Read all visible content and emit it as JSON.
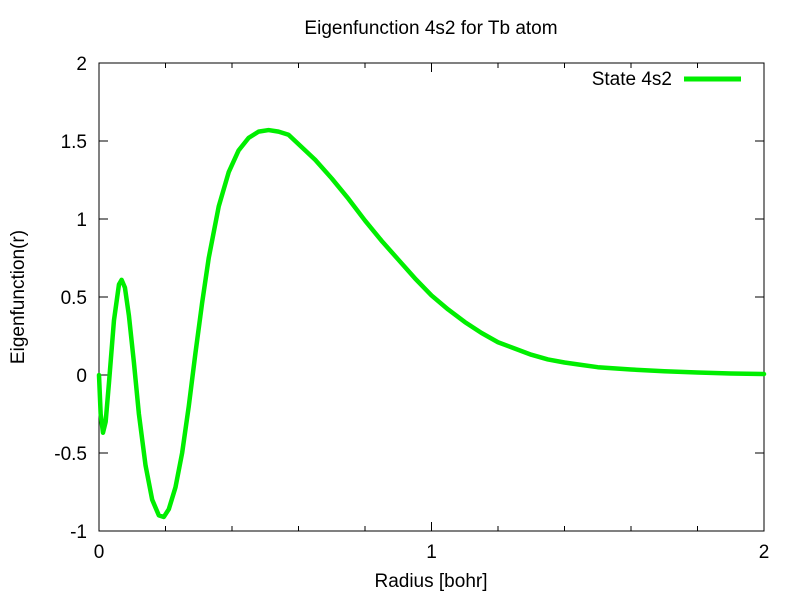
{
  "chart_data": {
    "type": "line",
    "title": "Eigenfunction 4s2 for Tb atom",
    "xlabel": "Radius [bohr]",
    "ylabel": "Eigenfunction(r)",
    "xlim": [
      0,
      2
    ],
    "ylim": [
      -1,
      2
    ],
    "xticks": [
      0,
      1,
      2
    ],
    "xtick_labels": [
      "0",
      "1",
      "2"
    ],
    "yticks": [
      -1,
      -0.5,
      0,
      0.5,
      1,
      1.5,
      2
    ],
    "ytick_labels": [
      "-1",
      "-0.5",
      "0",
      "0.5",
      "1",
      "1.5",
      "2"
    ],
    "x_minor_step": 0.2,
    "grid": false,
    "legend_position": "top-right",
    "series": [
      {
        "name": "State 4s2",
        "color": "#00ee00",
        "points": [
          [
            0.0,
            0.0
          ],
          [
            0.005,
            -0.25
          ],
          [
            0.012,
            -0.37
          ],
          [
            0.02,
            -0.3
          ],
          [
            0.03,
            -0.05
          ],
          [
            0.045,
            0.35
          ],
          [
            0.06,
            0.58
          ],
          [
            0.068,
            0.61
          ],
          [
            0.078,
            0.56
          ],
          [
            0.09,
            0.38
          ],
          [
            0.105,
            0.08
          ],
          [
            0.12,
            -0.25
          ],
          [
            0.14,
            -0.58
          ],
          [
            0.16,
            -0.8
          ],
          [
            0.18,
            -0.9
          ],
          [
            0.195,
            -0.91
          ],
          [
            0.21,
            -0.86
          ],
          [
            0.23,
            -0.72
          ],
          [
            0.25,
            -0.5
          ],
          [
            0.27,
            -0.2
          ],
          [
            0.29,
            0.14
          ],
          [
            0.31,
            0.46
          ],
          [
            0.33,
            0.75
          ],
          [
            0.36,
            1.08
          ],
          [
            0.39,
            1.3
          ],
          [
            0.42,
            1.44
          ],
          [
            0.45,
            1.52
          ],
          [
            0.48,
            1.56
          ],
          [
            0.51,
            1.57
          ],
          [
            0.54,
            1.56
          ],
          [
            0.57,
            1.54
          ],
          [
            0.6,
            1.48
          ],
          [
            0.65,
            1.38
          ],
          [
            0.7,
            1.26
          ],
          [
            0.75,
            1.13
          ],
          [
            0.8,
            0.99
          ],
          [
            0.85,
            0.86
          ],
          [
            0.9,
            0.74
          ],
          [
            0.95,
            0.62
          ],
          [
            1.0,
            0.51
          ],
          [
            1.05,
            0.42
          ],
          [
            1.1,
            0.34
          ],
          [
            1.15,
            0.27
          ],
          [
            1.2,
            0.21
          ],
          [
            1.25,
            0.17
          ],
          [
            1.3,
            0.13
          ],
          [
            1.35,
            0.1
          ],
          [
            1.4,
            0.08
          ],
          [
            1.45,
            0.065
          ],
          [
            1.5,
            0.05
          ],
          [
            1.6,
            0.035
          ],
          [
            1.7,
            0.024
          ],
          [
            1.8,
            0.016
          ],
          [
            1.9,
            0.01
          ],
          [
            2.0,
            0.006
          ]
        ]
      }
    ]
  }
}
